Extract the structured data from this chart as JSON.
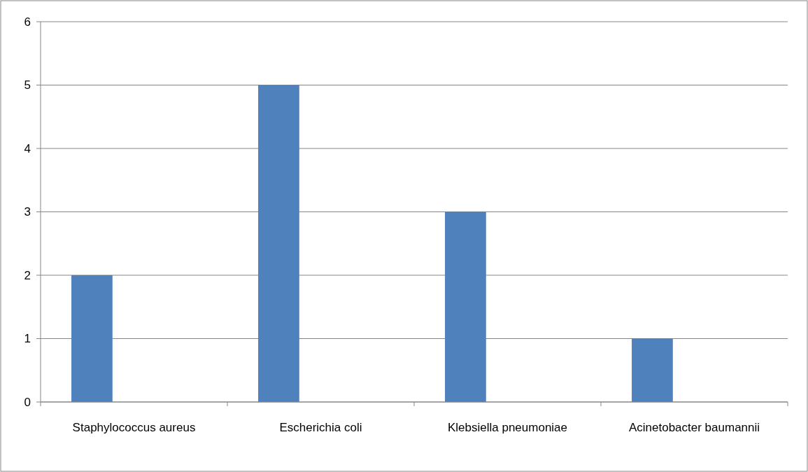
{
  "chart_data": {
    "type": "bar",
    "categories": [
      "Staphylococcus aureus",
      "Escherichia coli",
      "Klebsiella pneumoniae",
      "Acinetobacter baumannii"
    ],
    "values": [
      2,
      5,
      3,
      1
    ],
    "color": "#4f81bd",
    "ylim": [
      0,
      6
    ],
    "yticks": [
      0,
      1,
      2,
      3,
      4,
      5,
      6
    ],
    "grid": "y"
  }
}
